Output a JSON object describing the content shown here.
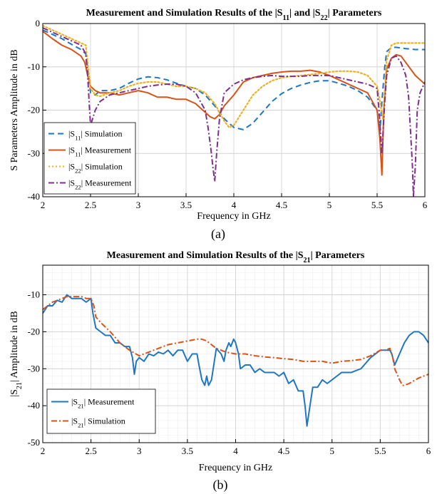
{
  "figure": {
    "caption_a": "(a)",
    "caption_b": "(b)",
    "colors": {
      "blue": "#1f77c4",
      "orange": "#d95319",
      "yellow": "#edb120",
      "purple": "#7e2f8e",
      "grid_major": "#d4d4d4",
      "grid_minor": "#ececec"
    }
  },
  "chart_data": [
    {
      "type": "line",
      "title_parts": [
        "Measurement and Simulation Results of the |S",
        "11",
        "| and |S",
        "22",
        "| Parameters"
      ],
      "xlabel": "Frequency in GHz",
      "ylabel": "S Parameters Amplitude in dB",
      "xlim": [
        2,
        6
      ],
      "ylim": [
        -40,
        0
      ],
      "xticks": [
        2,
        2.5,
        3,
        3.5,
        4,
        4.5,
        5,
        5.5,
        6
      ],
      "xtick_labels": [
        "2",
        "2.5",
        "3",
        "3.5",
        "4",
        "4.5",
        "5",
        "5.5",
        "6"
      ],
      "yticks": [
        0,
        -10,
        -20,
        -30,
        -40
      ],
      "ytick_labels": [
        "0",
        "-10",
        "-20",
        "-30",
        "-40"
      ],
      "grid": "major",
      "legend_position": "bottom-left",
      "series": [
        {
          "name": "|S11| Simulation",
          "legend": {
            "pre": "|S",
            "sub": "11",
            "post": "| Simulation"
          },
          "color": "#1f77c4",
          "style": "dashed",
          "x": [
            2.0,
            2.1,
            2.2,
            2.3,
            2.4,
            2.45,
            2.48,
            2.5,
            2.55,
            2.6,
            2.7,
            2.8,
            2.9,
            3.0,
            3.1,
            3.2,
            3.3,
            3.4,
            3.5,
            3.6,
            3.7,
            3.8,
            3.9,
            4.0,
            4.1,
            4.2,
            4.3,
            4.4,
            4.5,
            4.6,
            4.7,
            4.8,
            4.9,
            5.0,
            5.1,
            5.2,
            5.3,
            5.4,
            5.5,
            5.53,
            5.55,
            5.58,
            5.6,
            5.65,
            5.7,
            5.8,
            5.9,
            6.0
          ],
          "y": [
            -1.5,
            -2.5,
            -3.5,
            -4.8,
            -6.0,
            -7.0,
            -12.0,
            -16.0,
            -16.5,
            -15.5,
            -15.5,
            -15.0,
            -13.8,
            -12.8,
            -12.3,
            -12.5,
            -13.0,
            -13.8,
            -14.5,
            -15.0,
            -16.5,
            -19.0,
            -22.0,
            -24.0,
            -24.5,
            -23.0,
            -20.5,
            -18.0,
            -16.2,
            -15.0,
            -14.2,
            -13.6,
            -13.2,
            -13.2,
            -13.8,
            -14.5,
            -15.5,
            -17.0,
            -20.0,
            -25.0,
            -18.0,
            -10.0,
            -6.5,
            -5.5,
            -5.5,
            -5.8,
            -6.0,
            -6.0
          ]
        },
        {
          "name": "|S11| Measurement",
          "legend": {
            "pre": "|S",
            "sub": "11",
            "post": "| Measurement"
          },
          "color": "#d95319",
          "style": "solid",
          "x": [
            2.0,
            2.1,
            2.2,
            2.3,
            2.4,
            2.44,
            2.47,
            2.5,
            2.55,
            2.6,
            2.7,
            2.8,
            2.9,
            3.0,
            3.1,
            3.2,
            3.3,
            3.4,
            3.5,
            3.6,
            3.65,
            3.7,
            3.75,
            3.8,
            3.85,
            3.9,
            4.0,
            4.1,
            4.2,
            4.3,
            4.4,
            4.5,
            4.6,
            4.7,
            4.8,
            4.9,
            5.0,
            5.1,
            5.2,
            5.3,
            5.4,
            5.5,
            5.53,
            5.55,
            5.57,
            5.6,
            5.65,
            5.7,
            5.75,
            5.8,
            5.9,
            6.0
          ],
          "y": [
            -1.8,
            -3.5,
            -5.0,
            -6.0,
            -7.5,
            -9.0,
            -12.0,
            -14.5,
            -15.5,
            -16.0,
            -16.0,
            -16.5,
            -16.0,
            -15.5,
            -16.0,
            -17.0,
            -17.0,
            -17.5,
            -17.5,
            -18.5,
            -19.5,
            -20.5,
            -21.5,
            -22.0,
            -21.0,
            -19.0,
            -16.5,
            -13.5,
            -12.5,
            -12.0,
            -11.5,
            -11.2,
            -11.0,
            -11.0,
            -10.8,
            -11.2,
            -12.0,
            -13.0,
            -14.0,
            -15.0,
            -16.0,
            -20.0,
            -27.0,
            -35.0,
            -20.0,
            -10.5,
            -8.0,
            -7.2,
            -7.5,
            -9.0,
            -12.0,
            -14.0
          ]
        },
        {
          "name": "|S22| Simulation",
          "legend": {
            "pre": "|S",
            "sub": "22",
            "post": "| Simulation"
          },
          "color": "#edb120",
          "style": "dotted",
          "x": [
            2.0,
            2.1,
            2.2,
            2.3,
            2.4,
            2.45,
            2.47,
            2.5,
            2.55,
            2.6,
            2.7,
            2.8,
            2.9,
            3.0,
            3.1,
            3.2,
            3.3,
            3.4,
            3.5,
            3.6,
            3.7,
            3.8,
            3.9,
            3.95,
            4.0,
            4.1,
            4.2,
            4.3,
            4.4,
            4.5,
            4.6,
            4.7,
            4.8,
            4.9,
            5.0,
            5.1,
            5.2,
            5.3,
            5.4,
            5.5,
            5.53,
            5.56,
            5.6,
            5.65,
            5.7,
            5.8,
            5.9,
            6.0
          ],
          "y": [
            -0.5,
            -1.5,
            -2.5,
            -3.5,
            -4.5,
            -5.0,
            -9.0,
            -15.0,
            -16.5,
            -16.8,
            -16.0,
            -15.5,
            -14.5,
            -13.8,
            -13.5,
            -13.5,
            -14.0,
            -14.5,
            -14.5,
            -15.0,
            -16.0,
            -18.5,
            -22.5,
            -24.0,
            -23.5,
            -20.0,
            -16.5,
            -14.5,
            -13.2,
            -12.5,
            -12.2,
            -12.0,
            -11.8,
            -11.5,
            -11.2,
            -11.0,
            -11.0,
            -11.2,
            -12.0,
            -14.5,
            -18.0,
            -22.0,
            -8.5,
            -5.0,
            -4.5,
            -4.5,
            -4.5,
            -4.5
          ]
        },
        {
          "name": "|S22| Measurement",
          "legend": {
            "pre": "|S",
            "sub": "22",
            "post": "| Measurement"
          },
          "color": "#7e2f8e",
          "style": "dashdot",
          "x": [
            2.0,
            2.1,
            2.2,
            2.3,
            2.4,
            2.45,
            2.47,
            2.49,
            2.5,
            2.55,
            2.6,
            2.7,
            2.8,
            2.9,
            3.0,
            3.1,
            3.2,
            3.3,
            3.4,
            3.5,
            3.6,
            3.65,
            3.7,
            3.73,
            3.76,
            3.78,
            3.8,
            3.82,
            3.85,
            3.9,
            4.0,
            4.1,
            4.2,
            4.3,
            4.4,
            4.5,
            4.6,
            4.7,
            4.8,
            4.9,
            5.0,
            5.1,
            5.2,
            5.3,
            5.4,
            5.5,
            5.52,
            5.55,
            5.58,
            5.6,
            5.65,
            5.7,
            5.75,
            5.8,
            5.83,
            5.85,
            5.87,
            5.88,
            5.9,
            5.92,
            5.95,
            6.0
          ],
          "y": [
            -1.0,
            -2.0,
            -3.0,
            -4.0,
            -5.0,
            -7.0,
            -12.0,
            -20.0,
            -23.5,
            -20.0,
            -18.0,
            -16.5,
            -16.0,
            -15.5,
            -15.0,
            -14.5,
            -14.2,
            -14.0,
            -14.0,
            -14.5,
            -16.0,
            -18.0,
            -20.0,
            -24.0,
            -29.0,
            -33.0,
            -36.5,
            -30.0,
            -22.0,
            -16.0,
            -14.0,
            -13.0,
            -12.5,
            -12.2,
            -12.0,
            -12.2,
            -12.2,
            -12.2,
            -12.0,
            -12.0,
            -12.0,
            -12.5,
            -13.0,
            -13.5,
            -14.0,
            -15.0,
            -20.0,
            -30.0,
            -18.0,
            -12.0,
            -8.0,
            -7.5,
            -9.0,
            -12.0,
            -17.0,
            -25.0,
            -33.0,
            -40.0,
            -33.0,
            -20.0,
            -16.0,
            -13.5
          ]
        }
      ]
    },
    {
      "type": "line",
      "title_parts": [
        "Measurement and Simulation Results of  the |S",
        "21",
        "| Parameters"
      ],
      "xlabel": "Frequency in GHz",
      "ylabel_parts": [
        "|S",
        "21",
        "| Amplitude in dB"
      ],
      "xlim": [
        2,
        6
      ],
      "ylim": [
        -50,
        -2
      ],
      "xticks": [
        2,
        2.5,
        3,
        3.5,
        4,
        4.5,
        5,
        5.5,
        6
      ],
      "xtick_labels": [
        "2",
        "2.5",
        "3",
        "3.5",
        "4",
        "4.5",
        "5",
        "5.5",
        "6"
      ],
      "yticks": [
        -10,
        -20,
        -30,
        -40,
        -50
      ],
      "ytick_labels": [
        "-10",
        "-20",
        "-30",
        "-40",
        "-50"
      ],
      "grid": "major+minor",
      "legend_position": "bottom-left",
      "series": [
        {
          "name": "|S21| Measurement",
          "legend": {
            "pre": "|S",
            "sub": "21",
            "post": "| Measurement"
          },
          "color": "#1f77c4",
          "style": "solid",
          "x": [
            2.0,
            2.05,
            2.1,
            2.15,
            2.2,
            2.25,
            2.3,
            2.35,
            2.4,
            2.45,
            2.5,
            2.52,
            2.55,
            2.6,
            2.65,
            2.7,
            2.75,
            2.8,
            2.85,
            2.9,
            2.93,
            2.95,
            2.97,
            3.0,
            3.05,
            3.1,
            3.15,
            3.2,
            3.25,
            3.3,
            3.35,
            3.4,
            3.45,
            3.5,
            3.55,
            3.6,
            3.62,
            3.65,
            3.68,
            3.7,
            3.72,
            3.75,
            3.8,
            3.85,
            3.88,
            3.9,
            3.93,
            3.95,
            3.98,
            4.0,
            4.03,
            4.05,
            4.1,
            4.15,
            4.2,
            4.25,
            4.3,
            4.35,
            4.4,
            4.45,
            4.5,
            4.55,
            4.6,
            4.65,
            4.7,
            4.72,
            4.74,
            4.76,
            4.8,
            4.85,
            4.9,
            4.95,
            5.0,
            5.05,
            5.1,
            5.15,
            5.2,
            5.3,
            5.4,
            5.5,
            5.55,
            5.6,
            5.62,
            5.65,
            5.7,
            5.75,
            5.8,
            5.85,
            5.9,
            5.95,
            6.0
          ],
          "y": [
            -15,
            -13,
            -13,
            -11.5,
            -12,
            -10,
            -11,
            -11,
            -11,
            -12,
            -11,
            -15,
            -19,
            -20,
            -21,
            -21,
            -23,
            -23,
            -24,
            -24,
            -27,
            -31.5,
            -28,
            -27,
            -28,
            -26,
            -26.5,
            -25.5,
            -26,
            -25,
            -26.5,
            -25,
            -25,
            -28,
            -26,
            -26,
            -29,
            -33,
            -34.5,
            -32,
            -34.5,
            -33,
            -24.5,
            -26,
            -28,
            -25,
            -23,
            -24,
            -22,
            -23,
            -26,
            -30,
            -29,
            -29,
            -31,
            -30,
            -31,
            -31,
            -31,
            -32,
            -31,
            -34,
            -33,
            -36,
            -36,
            -40,
            -45.5,
            -42,
            -35,
            -35,
            -33,
            -34,
            -33,
            -32,
            -31,
            -31,
            -31,
            -30,
            -27,
            -25,
            -25,
            -25,
            -26,
            -29,
            -26,
            -23,
            -21,
            -20,
            -20,
            -21,
            -23
          ]
        },
        {
          "name": "|S21| Simulation",
          "legend": {
            "pre": "|S",
            "sub": "21",
            "post": "| Simulation"
          },
          "color": "#d95319",
          "style": "dashdot",
          "x": [
            2.0,
            2.05,
            2.1,
            2.15,
            2.2,
            2.25,
            2.3,
            2.4,
            2.45,
            2.5,
            2.53,
            2.55,
            2.6,
            2.7,
            2.8,
            2.9,
            3.0,
            3.1,
            3.2,
            3.3,
            3.4,
            3.5,
            3.6,
            3.65,
            3.7,
            3.8,
            3.9,
            4.0,
            4.1,
            4.2,
            4.3,
            4.4,
            4.5,
            4.6,
            4.7,
            4.8,
            4.9,
            5.0,
            5.1,
            5.2,
            5.3,
            5.4,
            5.5,
            5.55,
            5.6,
            5.63,
            5.65,
            5.7,
            5.73,
            5.75,
            5.8,
            5.9,
            6.0
          ],
          "y": [
            -14,
            -13,
            -12,
            -11.5,
            -11,
            -10.5,
            -10.5,
            -10.5,
            -11,
            -11,
            -13,
            -16,
            -17.5,
            -20,
            -23,
            -25,
            -26.5,
            -25.5,
            -24.5,
            -23.5,
            -23,
            -22.5,
            -22,
            -22,
            -22.5,
            -24.5,
            -25.5,
            -26,
            -26,
            -26.5,
            -26.8,
            -27,
            -27.3,
            -27.5,
            -28,
            -28,
            -28,
            -28.5,
            -28,
            -27.8,
            -27.5,
            -26.5,
            -25,
            -25,
            -24.5,
            -27,
            -30,
            -33,
            -34.5,
            -34.5,
            -34,
            -32.5,
            -31.5
          ]
        }
      ]
    }
  ]
}
